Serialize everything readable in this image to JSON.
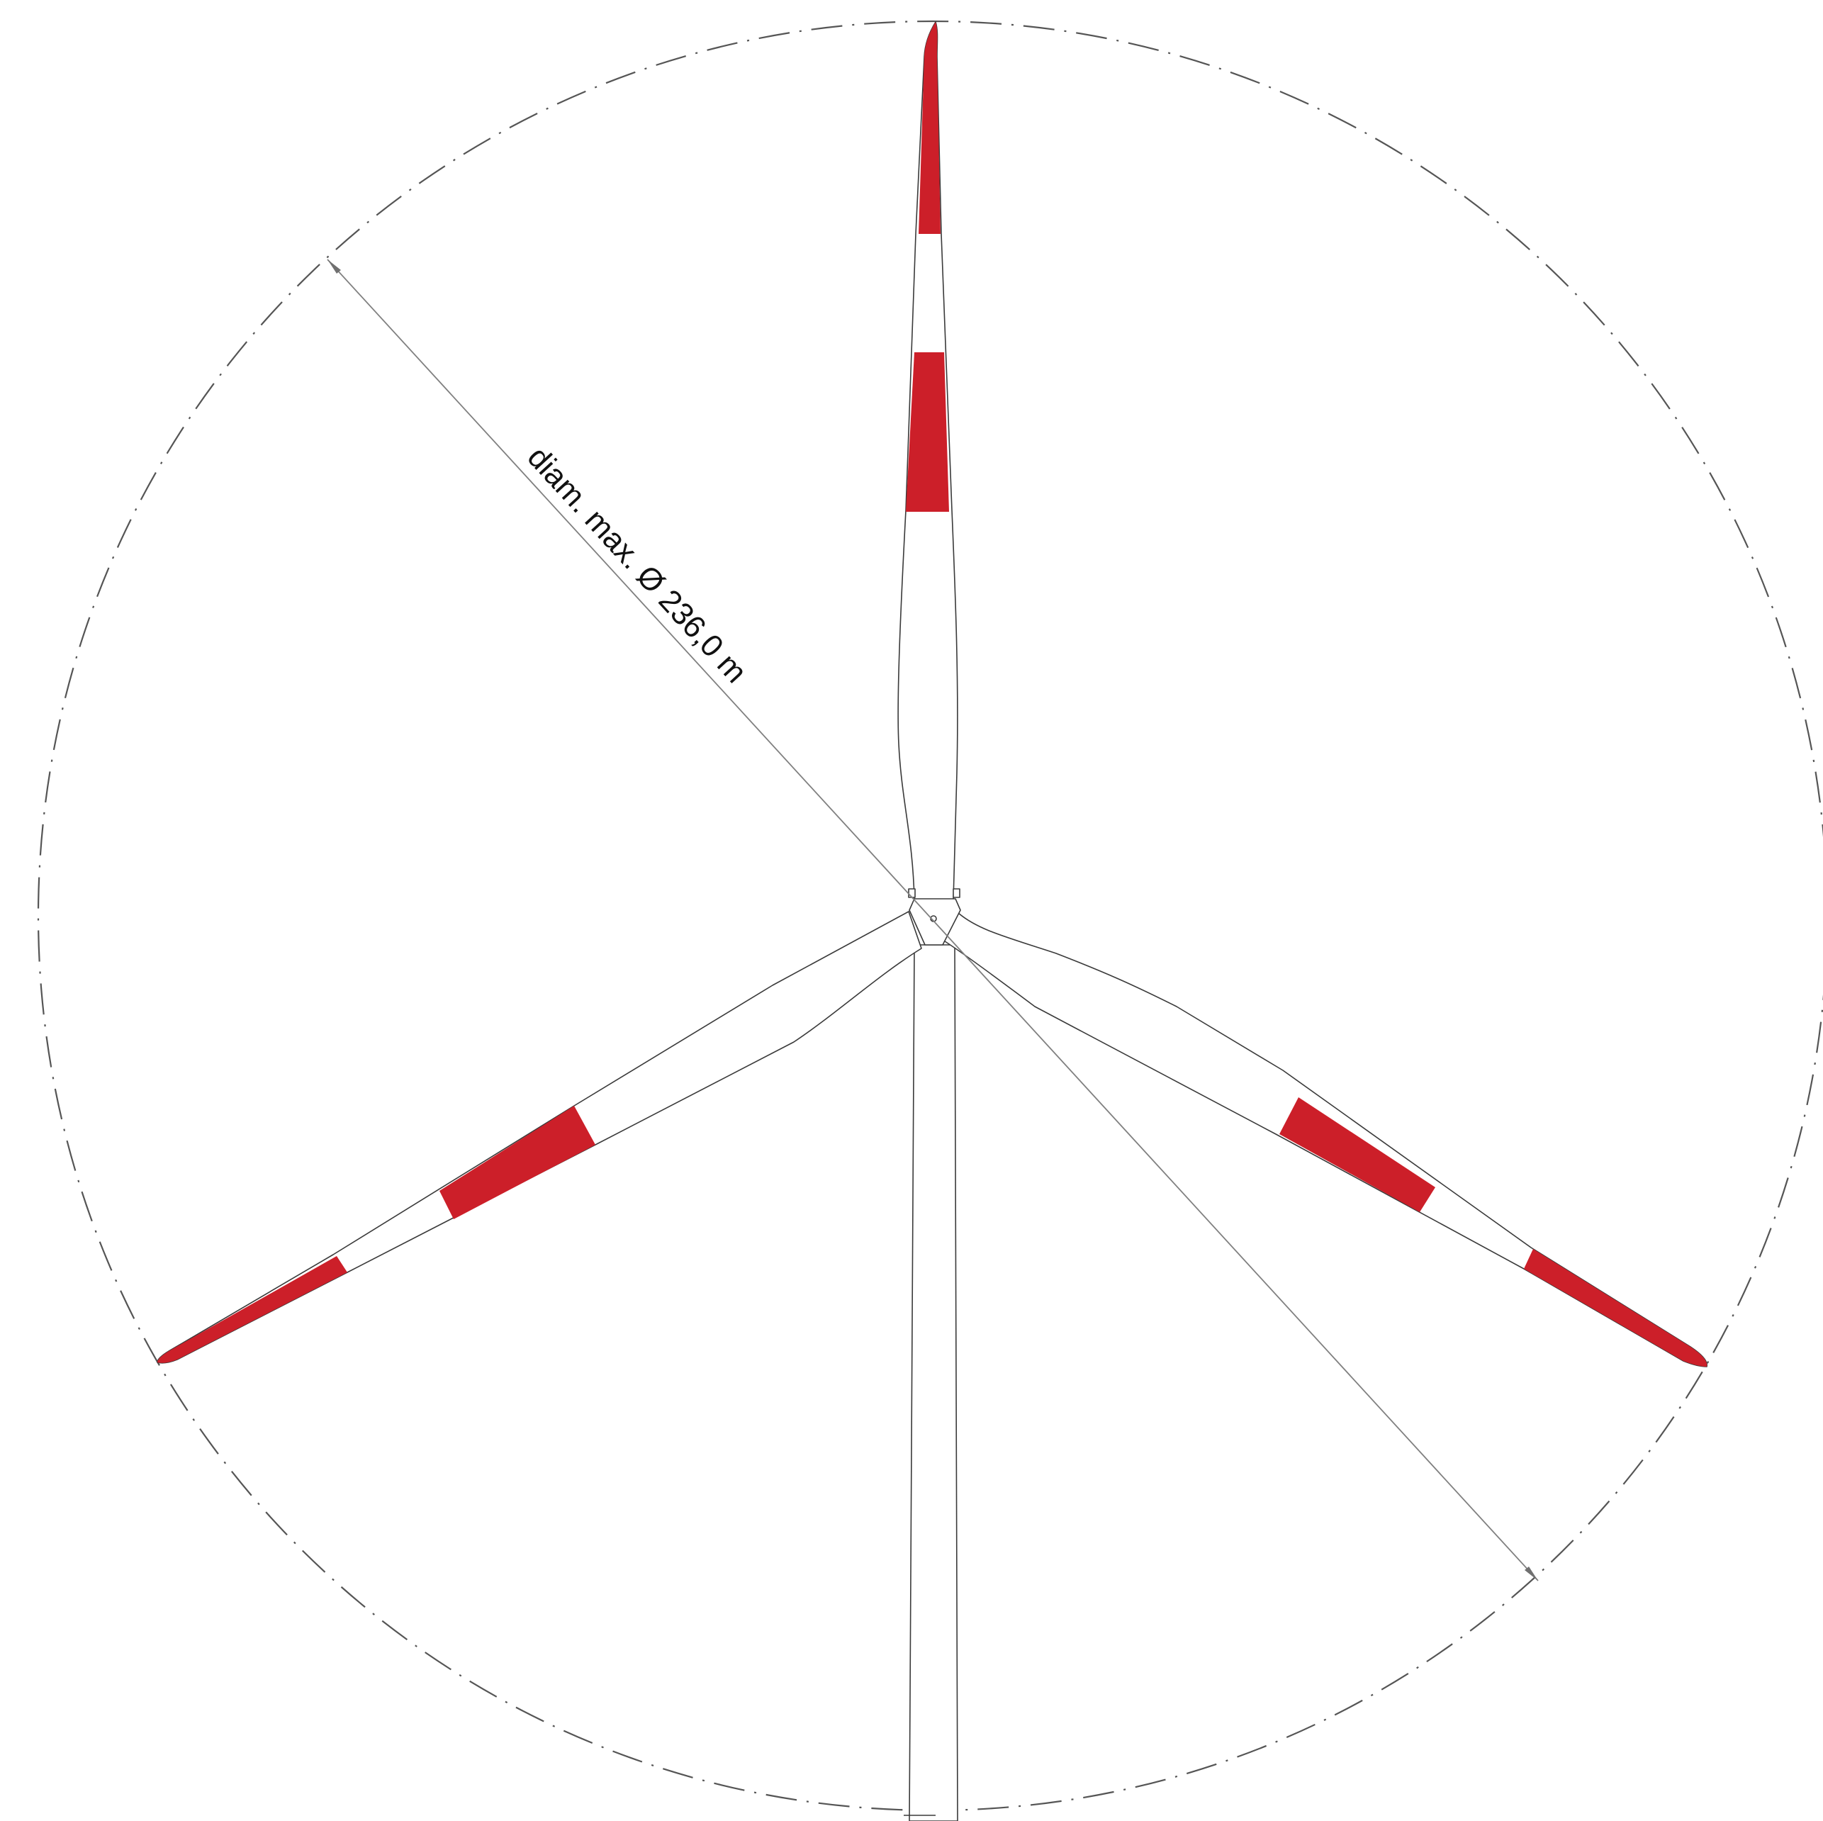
{
  "drawing": {
    "dimension_label": "diam. max. Ø 236,0 m",
    "colors": {
      "warning_band": "#cc1f29",
      "outline": "#3a3a3a",
      "dimension_line": "#808080",
      "background": "#ffffff"
    },
    "parts": [
      "rotor-swept-circle",
      "blade-top",
      "blade-left",
      "blade-right",
      "hub",
      "tower",
      "diameter-dimension"
    ]
  }
}
